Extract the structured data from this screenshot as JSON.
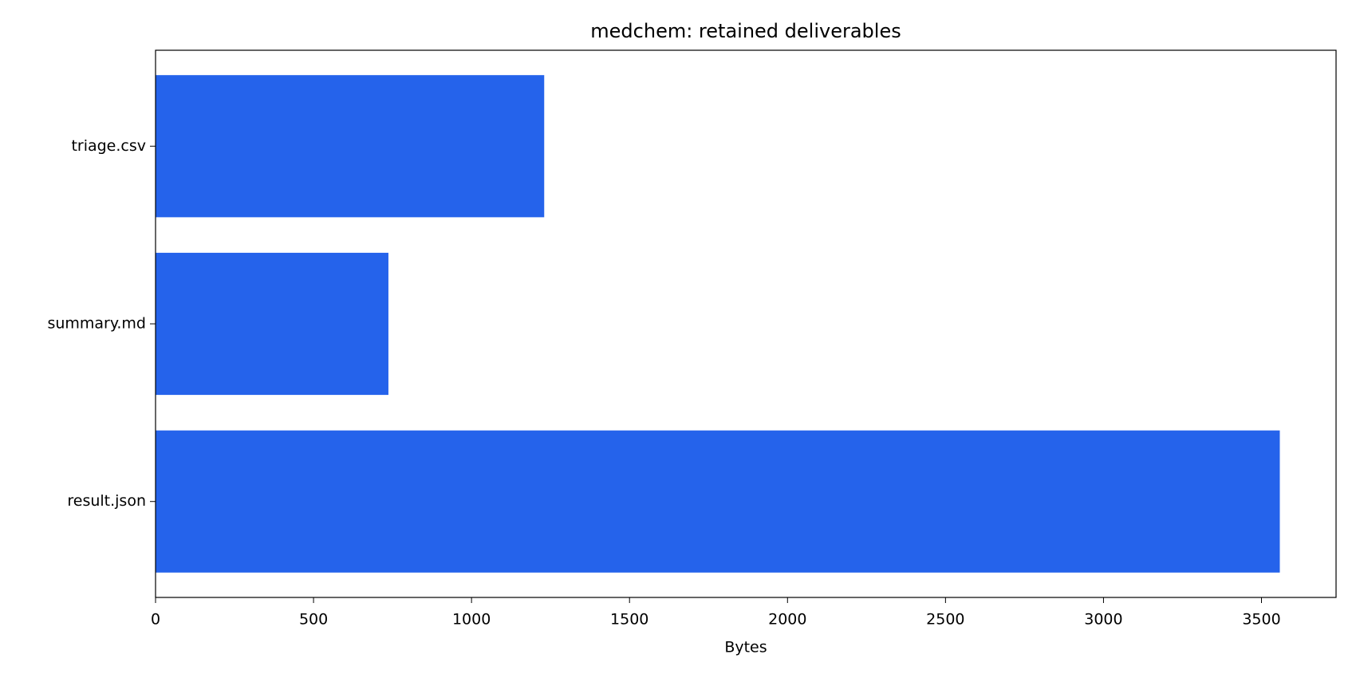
{
  "chart_data": {
    "type": "barh",
    "title": "medchem: retained deliverables",
    "xlabel": "Bytes",
    "categories": [
      "result.json",
      "summary.md",
      "triage.csv"
    ],
    "values": [
      3558,
      737,
      1230
    ],
    "color": "#2563eb",
    "xlim": [
      0,
      3736
    ],
    "xticks": [
      0,
      500,
      1000,
      1500,
      2000,
      2500,
      3000,
      3500
    ],
    "grid": false
  }
}
